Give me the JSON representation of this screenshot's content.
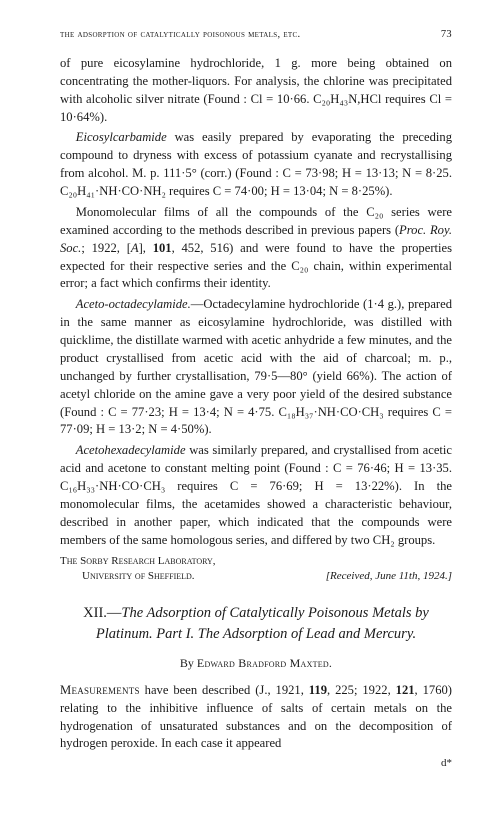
{
  "running_head": {
    "title": "the adsorption of catalytically poisonous metals, etc.",
    "page_no": "73"
  },
  "para_pure_eicosylamine": "of pure eicosylamine hydrochloride, 1 g. more being obtained on concentrating the mother-liquors. For analysis, the chlorine was precipitated with alcoholic silver nitrate (Found : Cl = 10·66. C₂₀H₄₃N,HCl requires Cl = 10·64%).",
  "eicosyl_label": "Eicosylcarbamide",
  "para_eicosyl_rest": " was easily prepared by evaporating the preceding compound to dryness with excess of potassium cyanate and recrystallising from alcohol. M. p. 111·5° (corr.) (Found : C = 73·98; H = 13·13; N = 8·25. C₂₀H₄₁·NH·CO·NH₂ requires C = 74·00; H = 13·04; N = 8·25%).",
  "para_mono_a": "Monomolecular films of all the compounds of the C₂₀ series were examined according to the methods described in previous papers (",
  "proc_roy": "Proc. Roy. Soc.",
  "para_mono_b": "; 1922, [",
  "serA": "A",
  "para_mono_c": "], ",
  "vol101": "101",
  "para_mono_d": ", 452, 516) and were found to have the properties expected for their respective series and the C₂₀ chain, within experimental error; a fact which confirms their identity.",
  "aceto_label": "Aceto-octadecylamide.",
  "para_aceto_rest": "—Octadecylamine hydrochloride (1·4 g.), prepared in the same manner as eicosylamine hydrochloride, was distilled with quicklime, the distillate warmed with acetic anhydride a few minutes, and the product crystallised from acetic acid with the aid of charcoal; m. p., unchanged by further crystallisation, 79·5—80° (yield 66%). The action of acetyl chloride on the amine gave a very poor yield of the desired substance (Found : C = 77·23; H = 13·4; N = 4·75. C₁₈H₃₇·NH·CO·CH₃ requires C = 77·09; H = 13·2; N = 4·50%).",
  "acetohex_label": "Acetohexadecylamide",
  "para_acetohex_rest": " was similarly prepared, and crystallised from acetic acid and acetone to constant melting point (Found : C = 76·46; H = 13·35. C₁₆H₃₃·NH·CO·CH₃ requires C = 76·69; H = 13·22%). In the monomolecular films, the acetamides showed a characteristic behaviour, described in another paper, which indicated that the compounds were members of the same homologous series, and differed by two CH₂ groups.",
  "affiliation_line1": "The Sorby Research Laboratory,",
  "affiliation_line2": "University of Sheffield.",
  "received": "[Received, June 11th, 1924.]",
  "article_roman": "XII.—",
  "article_title": "The Adsorption of Catalytically Poisonous Metals by Platinum. Part I. The Adsorption of Lead and Mercury.",
  "author_by": "By ",
  "author_name": "Edward Bradford Maxted.",
  "measurements_sc": "Measurements",
  "para_measurements_a": " have been described (J., 1921, ",
  "vol119": "119",
  "para_measurements_b": ", 225; 1922, ",
  "vol121": "121",
  "para_measurements_c": ", 1760) relating to the inhibitive influence of salts of certain metals on the hydrogenation of unsaturated substances and on the decomposition of hydrogen peroxide. In each case it appeared",
  "sig_mark": "d*"
}
